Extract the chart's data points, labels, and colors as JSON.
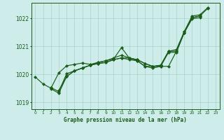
{
  "title": "Graphe pression niveau de la mer (hPa)",
  "ylim": [
    1018.75,
    1022.55
  ],
  "yticks": [
    1019,
    1020,
    1021,
    1022
  ],
  "bg_color": "#ceecea",
  "grid_color": "#a8d4ce",
  "line_color": "#1a5c1a",
  "marker": "D",
  "markersize": 2.2,
  "linewidth": 0.85,
  "series": [
    {
      "x": [
        0,
        1,
        2,
        3,
        4,
        5,
        6,
        7,
        8,
        9,
        10,
        11,
        12,
        13,
        14,
        15,
        16,
        17,
        18,
        19,
        20,
        21,
        22
      ],
      "y": [
        1019.9,
        1019.65,
        1019.5,
        1020.05,
        1020.3,
        1020.35,
        1020.4,
        1020.35,
        1020.42,
        1020.48,
        1020.55,
        1020.95,
        1020.57,
        1020.52,
        1020.38,
        1020.28,
        1020.28,
        1020.28,
        1020.82,
        1021.48,
        1022.02,
        1022.08,
        1022.35
      ]
    },
    {
      "x": [
        2,
        3,
        4,
        5,
        6,
        7,
        8,
        9,
        10,
        11,
        12,
        13,
        14,
        15,
        16,
        17,
        18,
        19,
        20,
        21
      ],
      "y": [
        1019.52,
        1019.38,
        1020.02,
        1020.12,
        1020.22,
        1020.32,
        1020.38,
        1020.42,
        1020.52,
        1020.58,
        1020.58,
        1020.48,
        1020.28,
        1020.28,
        1020.32,
        1020.82,
        1020.82,
        1021.52,
        1022.02,
        1022.08
      ]
    },
    {
      "x": [
        2,
        3,
        4,
        5,
        6,
        7,
        8,
        9,
        10,
        11,
        12,
        13,
        14,
        15,
        16,
        17,
        18,
        19,
        20,
        21
      ],
      "y": [
        1019.48,
        1019.32,
        1019.92,
        1020.12,
        1020.22,
        1020.32,
        1020.38,
        1020.42,
        1020.52,
        1020.58,
        1020.52,
        1020.48,
        1020.28,
        1020.22,
        1020.28,
        1020.78,
        1020.78,
        1021.48,
        1021.98,
        1022.02
      ]
    },
    {
      "x": [
        3,
        4,
        5,
        6,
        7,
        8,
        9,
        10,
        11,
        12,
        13,
        14,
        15,
        16,
        17,
        18,
        19,
        20,
        21,
        22
      ],
      "y": [
        1019.42,
        1019.92,
        1020.12,
        1020.22,
        1020.32,
        1020.42,
        1020.48,
        1020.58,
        1020.68,
        1020.58,
        1020.52,
        1020.38,
        1020.28,
        1020.32,
        1020.82,
        1020.88,
        1021.52,
        1022.08,
        1022.12,
        1022.38
      ]
    }
  ]
}
